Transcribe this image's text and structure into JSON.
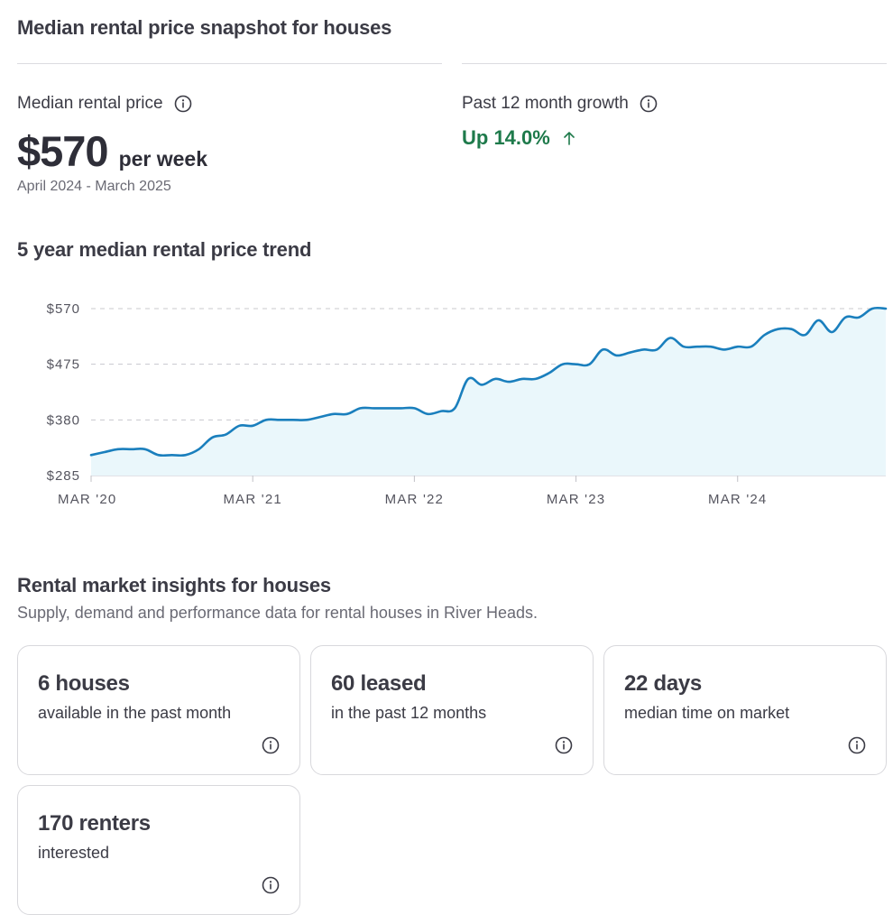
{
  "snapshot": {
    "title": "Median rental price snapshot for houses",
    "median_label": "Median rental price",
    "median_value": "$570",
    "median_unit": "per week",
    "period": "April 2024 - March 2025",
    "growth_label": "Past 12 month growth",
    "growth_value": "Up 14.0%",
    "growth_color": "#1e7a4b"
  },
  "trend": {
    "title": "5 year median rental price trend"
  },
  "chart_data": {
    "type": "area",
    "title": "",
    "xlabel": "",
    "ylabel": "",
    "ylim": [
      285,
      570
    ],
    "y_ticks": [
      285,
      380,
      475,
      570
    ],
    "y_tick_labels": [
      "$285",
      "$380",
      "$475",
      "$570"
    ],
    "x_tick_labels": [
      "MAR '20",
      "MAR '21",
      "MAR '22",
      "MAR '23",
      "MAR '24"
    ],
    "x_ticks": [
      0,
      12,
      24,
      36,
      48
    ],
    "grid": true,
    "line_color": "#1a7fbd",
    "fill_color": "#eaf7fb",
    "x": [
      0,
      1,
      2,
      3,
      4,
      5,
      6,
      7,
      8,
      9,
      10,
      11,
      12,
      13,
      14,
      15,
      16,
      17,
      18,
      19,
      20,
      21,
      22,
      23,
      24,
      25,
      26,
      27,
      28,
      29,
      30,
      31,
      32,
      33,
      34,
      35,
      36,
      37,
      38,
      39,
      40,
      41,
      42,
      43,
      44,
      45,
      46,
      47,
      48,
      49,
      50,
      51,
      52,
      53,
      54,
      55,
      56,
      57,
      58,
      59
    ],
    "values": [
      320,
      325,
      330,
      330,
      330,
      320,
      320,
      320,
      330,
      350,
      355,
      370,
      370,
      380,
      380,
      380,
      380,
      385,
      390,
      390,
      400,
      400,
      400,
      400,
      400,
      390,
      395,
      400,
      450,
      440,
      450,
      445,
      450,
      450,
      460,
      475,
      475,
      475,
      500,
      490,
      495,
      500,
      500,
      520,
      505,
      505,
      505,
      500,
      505,
      505,
      525,
      535,
      535,
      525,
      550,
      530,
      555,
      555,
      570,
      570
    ]
  },
  "insights": {
    "title": "Rental market insights for houses",
    "subtitle": "Supply, demand and performance data for rental houses in River Heads.",
    "cards": [
      {
        "value": "6 houses",
        "desc": "available in the past month"
      },
      {
        "value": "60 leased",
        "desc": "in the past 12 months"
      },
      {
        "value": "22 days",
        "desc": "median time on market"
      },
      {
        "value": "170 renters",
        "desc": "interested"
      }
    ]
  },
  "icons": {
    "info": "info-icon",
    "growth_arrow": "arrow-up-icon"
  }
}
